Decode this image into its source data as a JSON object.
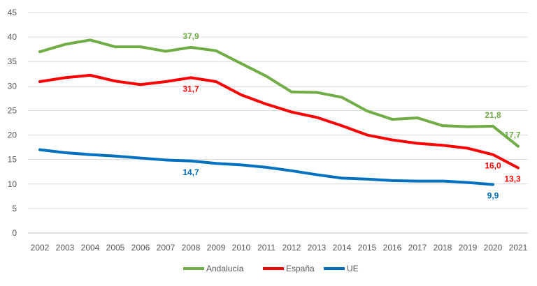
{
  "chart_data": {
    "type": "line",
    "title": "",
    "xlabel": "",
    "ylabel": "",
    "x": [
      "2002",
      "2003",
      "2004",
      "2005",
      "2006",
      "2007",
      "2008",
      "2009",
      "2010",
      "2011",
      "2012",
      "2013",
      "2014",
      "2015",
      "2016",
      "2017",
      "2018",
      "2019",
      "2020",
      "2021"
    ],
    "ylim": [
      0,
      45
    ],
    "yticks": [
      "0",
      "5",
      "10",
      "15",
      "20",
      "25",
      "30",
      "35",
      "40",
      "45"
    ],
    "grid": true,
    "legend_position": "bottom",
    "series": [
      {
        "name": "Andalucía",
        "color": "#70AD47",
        "values": [
          37.0,
          38.5,
          39.4,
          38.0,
          38.0,
          37.1,
          37.9,
          37.2,
          34.6,
          32.0,
          28.8,
          28.7,
          27.7,
          24.9,
          23.2,
          23.5,
          21.9,
          21.7,
          21.8,
          17.7
        ],
        "labels": [
          {
            "index": 6,
            "text": "37,9",
            "pos": "above"
          },
          {
            "index": 18,
            "text": "21,8",
            "pos": "above"
          },
          {
            "index": 19,
            "text": "17,7",
            "pos": "above"
          }
        ]
      },
      {
        "name": "España",
        "color": "#FF0000",
        "values": [
          30.9,
          31.7,
          32.2,
          31.0,
          30.3,
          30.9,
          31.7,
          30.9,
          28.2,
          26.3,
          24.7,
          23.6,
          21.9,
          20.0,
          19.0,
          18.3,
          17.9,
          17.3,
          16.0,
          13.3
        ],
        "labels": [
          {
            "index": 6,
            "text": "31,7",
            "pos": "below"
          },
          {
            "index": 18,
            "text": "16,0",
            "pos": "below"
          },
          {
            "index": 19,
            "text": "13,3",
            "pos": "below"
          }
        ]
      },
      {
        "name": "UE",
        "color": "#0070C0",
        "values": [
          17.0,
          16.4,
          16.0,
          15.7,
          15.3,
          14.9,
          14.7,
          14.2,
          13.9,
          13.4,
          12.7,
          11.9,
          11.2,
          11.0,
          10.7,
          10.6,
          10.6,
          10.3,
          9.9,
          null
        ],
        "labels": [
          {
            "index": 6,
            "text": "14,7",
            "pos": "below"
          },
          {
            "index": 18,
            "text": "9,9",
            "pos": "below"
          }
        ]
      }
    ]
  }
}
